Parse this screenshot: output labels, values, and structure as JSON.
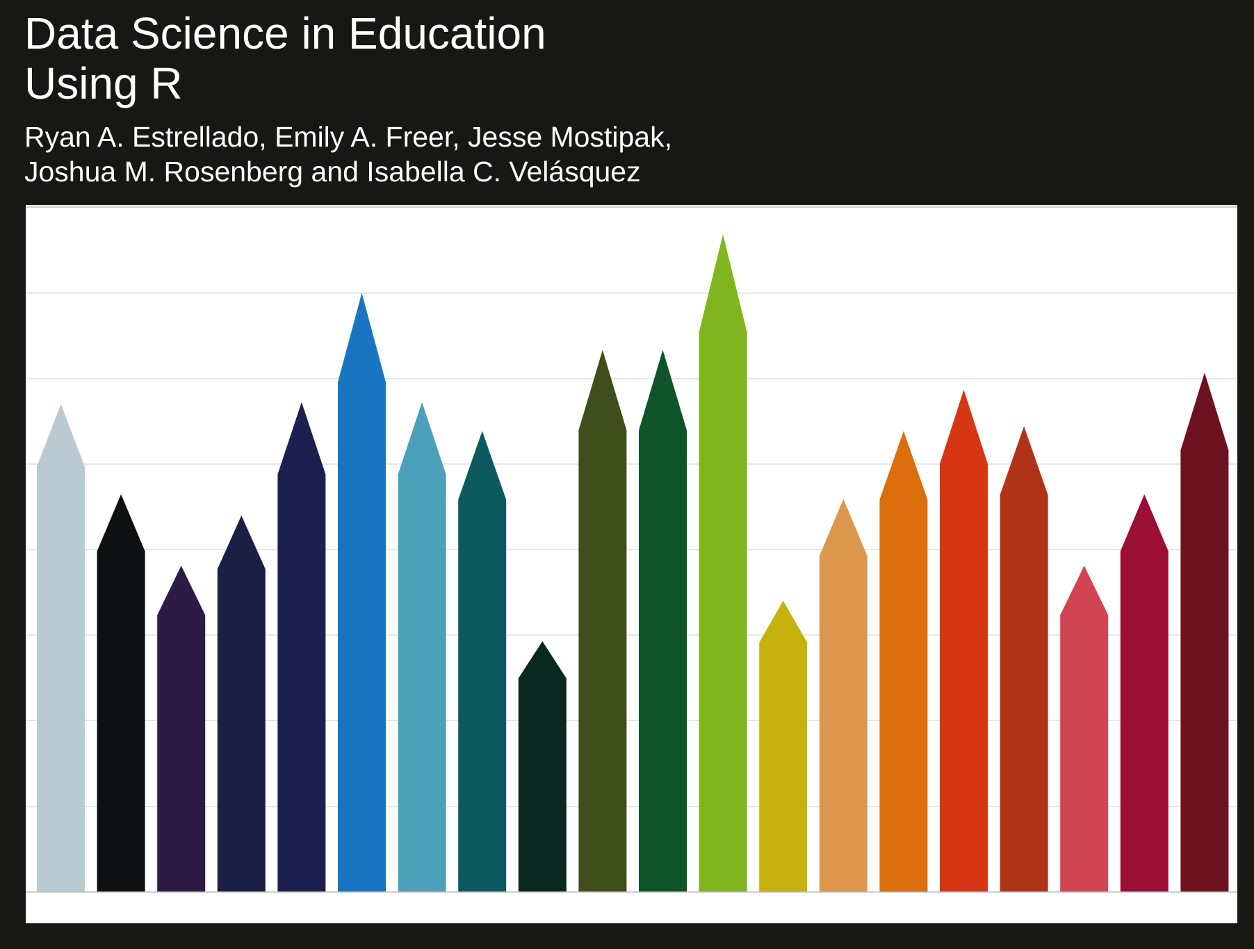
{
  "cover": {
    "background": "#171715",
    "title_line_1": "Data Science in Education",
    "title_line_2": "Using R",
    "authors_line_1": "Ryan A. Estrellado, Emily A. Freer, Jesse Mostipak,",
    "authors_line_2": "Joshua M. Rosenberg and Isabella C. Velásquez"
  },
  "artwork": {
    "description_shape": "pencil-bars",
    "gridline_color": "#cfcfcf",
    "baseline_color": "#bdbdbd",
    "pencils": [
      {
        "color": "#b9cad3",
        "level": 0.619,
        "tip": 0.091
      },
      {
        "color": "#0f1012",
        "level": 0.496,
        "tip": 0.083
      },
      {
        "color": "#2e1b45",
        "level": 0.403,
        "tip": 0.072
      },
      {
        "color": "#1c1f44",
        "level": 0.47,
        "tip": 0.078
      },
      {
        "color": "#1b2050",
        "level": 0.608,
        "tip": 0.105
      },
      {
        "color": "#1a75c0",
        "level": 0.742,
        "tip": 0.13
      },
      {
        "color": "#4da0ba",
        "level": 0.608,
        "tip": 0.105
      },
      {
        "color": "#0c5a60",
        "level": 0.571,
        "tip": 0.1
      },
      {
        "color": "#0a2820",
        "level": 0.311,
        "tip": 0.054
      },
      {
        "color": "#404e1b",
        "level": 0.672,
        "tip": 0.117
      },
      {
        "color": "#0f5328",
        "level": 0.672,
        "tip": 0.117
      },
      {
        "color": "#7fb51e",
        "level": 0.815,
        "tip": 0.142
      },
      {
        "color": "#c6b10f",
        "level": 0.363,
        "tip": 0.061
      },
      {
        "color": "#dd974c",
        "level": 0.489,
        "tip": 0.083
      },
      {
        "color": "#dc6e0d",
        "level": 0.571,
        "tip": 0.1
      },
      {
        "color": "#d63613",
        "level": 0.623,
        "tip": 0.108
      },
      {
        "color": "#b03317",
        "level": 0.578,
        "tip": 0.1
      },
      {
        "color": "#d14552",
        "level": 0.403,
        "tip": 0.072
      },
      {
        "color": "#9b0e36",
        "level": 0.496,
        "tip": 0.083
      },
      {
        "color": "#6e121f",
        "level": 0.643,
        "tip": 0.113
      }
    ]
  }
}
